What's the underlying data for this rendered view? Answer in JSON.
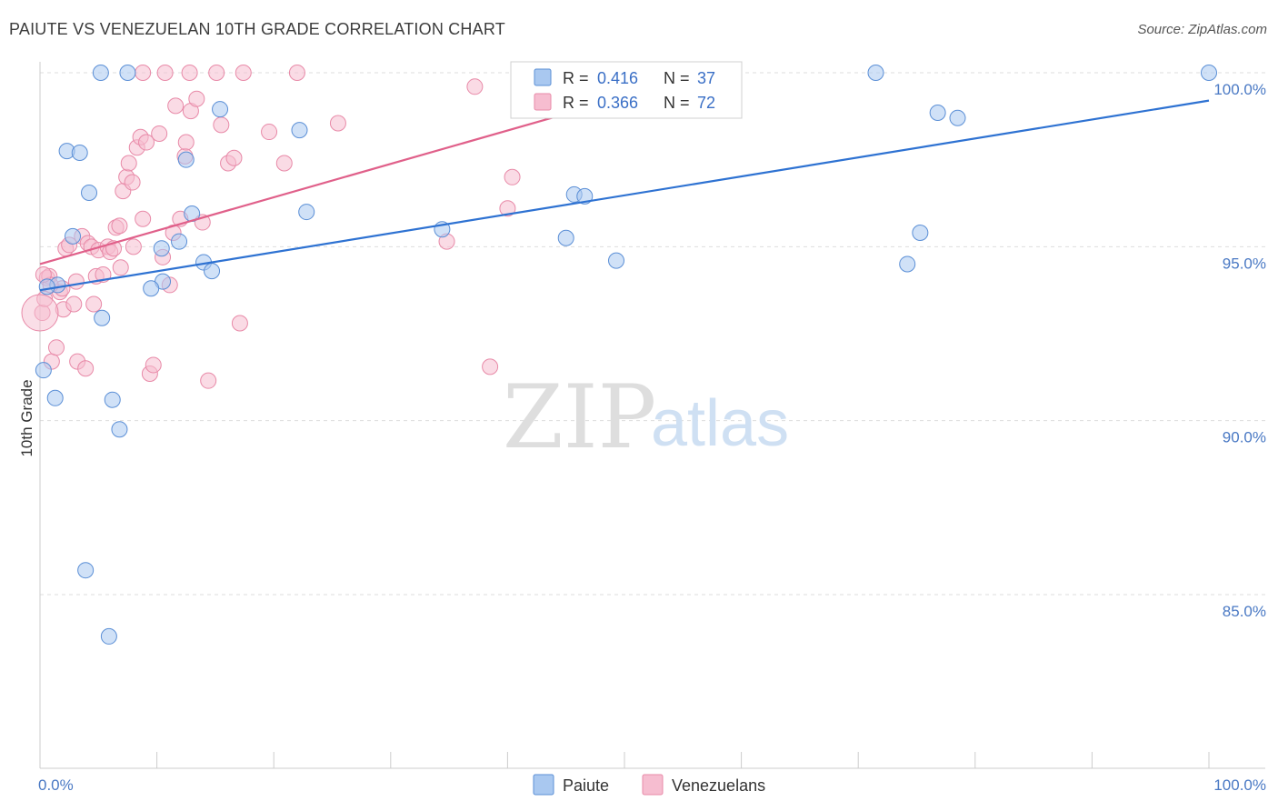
{
  "title": "PAIUTE VS VENEZUELAN 10TH GRADE CORRELATION CHART",
  "source": "Source: ZipAtlas.com",
  "watermark": {
    "zip": "ZIP",
    "atlas": "atlas"
  },
  "colors": {
    "paiute_fill": "#a9c8f0",
    "paiute_stroke": "#5b8fd6",
    "paiute_line": "#2e72d2",
    "venezuelan_fill": "#f6bdd0",
    "venezuelan_stroke": "#e88aa8",
    "venezuelan_line": "#e0608a",
    "grid": "#dddddd",
    "axis_label": "#4a79c4"
  },
  "legend_top": {
    "paiute": {
      "r_label": "R =",
      "r_value": "0.416",
      "n_label": "N =",
      "n_value": "37"
    },
    "venezuelan": {
      "r_label": "R =",
      "r_value": "0.366",
      "n_label": "N =",
      "n_value": "72"
    }
  },
  "legend_bottom": {
    "paiute": "Paiute",
    "venezuelan": "Venezuelans"
  },
  "chart_data": {
    "type": "scatter",
    "title": "PAIUTE VS VENEZUELAN 10TH GRADE CORRELATION CHART",
    "xlabel": "",
    "ylabel": "10th Grade",
    "xlim": [
      0,
      100
    ],
    "ylim": [
      80.5,
      100.5
    ],
    "x_tick_labels": [
      {
        "value": 0,
        "label": "0.0%"
      },
      {
        "value": 100,
        "label": "100.0%"
      }
    ],
    "y_ticks": [
      {
        "value": 100,
        "label": "100.0%"
      },
      {
        "value": 95,
        "label": "95.0%"
      },
      {
        "value": 90,
        "label": "90.0%"
      },
      {
        "value": 85,
        "label": "85.0%"
      }
    ],
    "series": [
      {
        "name": "Paiute",
        "r": 0.416,
        "n": 37,
        "trend": {
          "x": [
            0,
            100
          ],
          "y": [
            93.75,
            99.2
          ]
        },
        "points": [
          [
            0.3,
            91.45
          ],
          [
            1.3,
            90.65
          ],
          [
            2.3,
            97.75
          ],
          [
            3.4,
            97.7
          ],
          [
            4.2,
            96.55
          ],
          [
            2.8,
            95.3
          ],
          [
            1.5,
            93.9
          ],
          [
            5.3,
            92.95
          ],
          [
            6.2,
            90.6
          ],
          [
            6.8,
            89.75
          ],
          [
            3.9,
            85.7
          ],
          [
            5.9,
            83.8
          ],
          [
            5.2,
            100.0
          ],
          [
            7.5,
            100.0
          ],
          [
            10.5,
            94.0
          ],
          [
            9.5,
            93.8
          ],
          [
            10.4,
            94.95
          ],
          [
            11.9,
            95.15
          ],
          [
            13.0,
            95.95
          ],
          [
            14.0,
            94.55
          ],
          [
            14.7,
            94.3
          ],
          [
            12.5,
            97.5
          ],
          [
            15.4,
            98.95
          ],
          [
            22.2,
            98.35
          ],
          [
            22.8,
            96.0
          ],
          [
            34.4,
            95.5
          ],
          [
            45.0,
            95.25
          ],
          [
            45.7,
            96.5
          ],
          [
            46.6,
            96.45
          ],
          [
            49.3,
            94.6
          ],
          [
            71.5,
            100.0
          ],
          [
            74.2,
            94.5
          ],
          [
            75.3,
            95.4
          ],
          [
            76.8,
            98.85
          ],
          [
            78.5,
            98.7
          ],
          [
            100.0,
            100.0
          ],
          [
            0.6,
            93.85
          ]
        ]
      },
      {
        "name": "Venezuelans",
        "r": 0.366,
        "n": 72,
        "trend": {
          "x": [
            0,
            50
          ],
          "y": [
            94.5,
            99.3
          ]
        },
        "points": [
          [
            0.2,
            93.1
          ],
          [
            0.4,
            93.5
          ],
          [
            0.6,
            94.1
          ],
          [
            0.8,
            94.15
          ],
          [
            1.0,
            91.7
          ],
          [
            1.4,
            92.1
          ],
          [
            1.7,
            93.7
          ],
          [
            2.0,
            93.2
          ],
          [
            2.2,
            94.95
          ],
          [
            2.5,
            95.05
          ],
          [
            2.9,
            93.35
          ],
          [
            3.2,
            91.7
          ],
          [
            3.6,
            95.3
          ],
          [
            3.9,
            91.5
          ],
          [
            4.1,
            95.1
          ],
          [
            4.4,
            95.0
          ],
          [
            4.8,
            94.15
          ],
          [
            5.0,
            94.9
          ],
          [
            5.4,
            94.2
          ],
          [
            5.8,
            95.0
          ],
          [
            6.0,
            94.85
          ],
          [
            6.3,
            94.95
          ],
          [
            6.5,
            95.55
          ],
          [
            6.8,
            95.6
          ],
          [
            7.1,
            96.6
          ],
          [
            7.4,
            97.0
          ],
          [
            7.6,
            97.4
          ],
          [
            7.9,
            96.85
          ],
          [
            8.3,
            97.85
          ],
          [
            8.6,
            98.15
          ],
          [
            8.8,
            95.8
          ],
          [
            9.1,
            98.0
          ],
          [
            9.4,
            91.35
          ],
          [
            9.7,
            91.6
          ],
          [
            10.2,
            98.25
          ],
          [
            10.5,
            94.7
          ],
          [
            11.1,
            93.9
          ],
          [
            11.6,
            99.05
          ],
          [
            12.0,
            95.8
          ],
          [
            12.4,
            97.6
          ],
          [
            12.9,
            98.9
          ],
          [
            13.4,
            99.25
          ],
          [
            13.9,
            95.7
          ],
          [
            14.4,
            91.15
          ],
          [
            15.1,
            100.0
          ],
          [
            15.5,
            98.5
          ],
          [
            16.1,
            97.4
          ],
          [
            16.6,
            97.55
          ],
          [
            17.1,
            92.8
          ],
          [
            19.6,
            98.3
          ],
          [
            20.9,
            97.4
          ],
          [
            22.0,
            100.0
          ],
          [
            25.5,
            98.55
          ],
          [
            34.8,
            95.15
          ],
          [
            37.2,
            99.6
          ],
          [
            38.5,
            91.55
          ],
          [
            40.0,
            96.1
          ],
          [
            40.4,
            97.0
          ],
          [
            8.8,
            100.0
          ],
          [
            10.7,
            100.0
          ],
          [
            12.8,
            100.0
          ],
          [
            17.4,
            100.0
          ],
          [
            12.5,
            98.0
          ],
          [
            3.1,
            94.0
          ],
          [
            4.6,
            93.35
          ],
          [
            1.9,
            93.8
          ],
          [
            6.9,
            94.4
          ],
          [
            0.9,
            93.9
          ],
          [
            8.0,
            95.0
          ],
          [
            11.4,
            95.4
          ],
          [
            0.3,
            94.2
          ],
          [
            0.0,
            93.1
          ]
        ]
      }
    ]
  }
}
